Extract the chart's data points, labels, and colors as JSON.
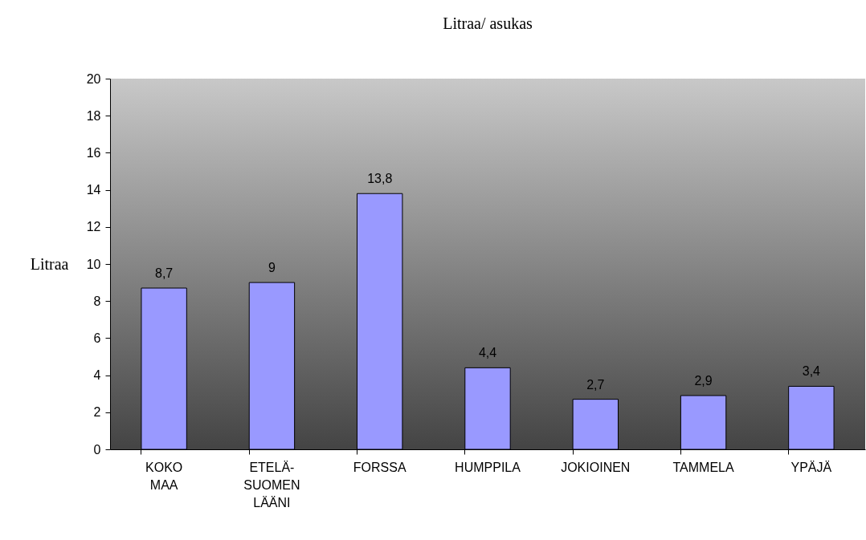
{
  "chart_data": {
    "type": "bar",
    "title": "Litraa/ asukas",
    "ylabel": "Litraa",
    "categories": [
      "KOKO MAA",
      "ETELÄ-SUOMEN LÄÄNI",
      "FORSSA",
      "HUMPPILA",
      "JOKIOINEN",
      "TAMMELA",
      "YPÄJÄ"
    ],
    "values": [
      8.7,
      9,
      13.8,
      4.4,
      2.7,
      2.9,
      3.4
    ],
    "value_labels": [
      "8,7",
      "9",
      "13,8",
      "4,4",
      "2,7",
      "2,9",
      "3,4"
    ],
    "color": "#9999ff",
    "ylim": [
      0,
      20
    ],
    "yticks": [
      0,
      2,
      4,
      6,
      8,
      10,
      12,
      14,
      16,
      18,
      20
    ],
    "grid": false
  }
}
